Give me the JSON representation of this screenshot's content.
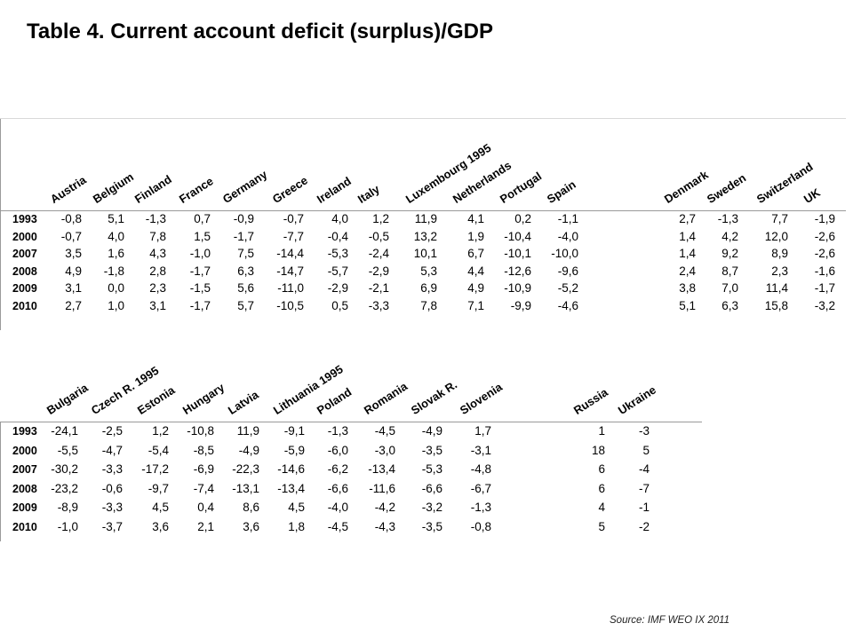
{
  "title": "Table 4. Current account deficit (surplus)/GDP",
  "source": "Source: IMF WEO IX 2011",
  "years": [
    "1993",
    "2000",
    "2007",
    "2008",
    "2009",
    "2010"
  ],
  "table1": {
    "groups": [
      {
        "columns": [
          "Austria",
          "Belgium",
          "Finland",
          "France",
          "Germany",
          "Greece",
          "Ireland",
          "Italy",
          "Luxembourg 1995",
          "Netherlands",
          "Portugal",
          "Spain"
        ],
        "rows": [
          [
            "-0,8",
            "5,1",
            "-1,3",
            "0,7",
            "-0,9",
            "-0,7",
            "4,0",
            "1,2",
            "11,9",
            "4,1",
            "0,2",
            "-1,1"
          ],
          [
            "-0,7",
            "4,0",
            "7,8",
            "1,5",
            "-1,7",
            "-7,7",
            "-0,4",
            "-0,5",
            "13,2",
            "1,9",
            "-10,4",
            "-4,0"
          ],
          [
            "3,5",
            "1,6",
            "4,3",
            "-1,0",
            "7,5",
            "-14,4",
            "-5,3",
            "-2,4",
            "10,1",
            "6,7",
            "-10,1",
            "-10,0"
          ],
          [
            "4,9",
            "-1,8",
            "2,8",
            "-1,7",
            "6,3",
            "-14,7",
            "-5,7",
            "-2,9",
            "5,3",
            "4,4",
            "-12,6",
            "-9,6"
          ],
          [
            "3,1",
            "0,0",
            "2,3",
            "-1,5",
            "5,6",
            "-11,0",
            "-2,9",
            "-2,1",
            "6,9",
            "4,9",
            "-10,9",
            "-5,2"
          ],
          [
            "2,7",
            "1,0",
            "3,1",
            "-1,7",
            "5,7",
            "-10,5",
            "0,5",
            "-3,3",
            "7,8",
            "7,1",
            "-9,9",
            "-4,6"
          ]
        ]
      },
      {
        "columns": [
          "Denmark",
          "Sweden",
          "Switzerland",
          "UK"
        ],
        "rows": [
          [
            "2,7",
            "-1,3",
            "7,7",
            "-1,9"
          ],
          [
            "1,4",
            "4,2",
            "12,0",
            "-2,6"
          ],
          [
            "1,4",
            "9,2",
            "8,9",
            "-2,6"
          ],
          [
            "2,4",
            "8,7",
            "2,3",
            "-1,6"
          ],
          [
            "3,8",
            "7,0",
            "11,4",
            "-1,7"
          ],
          [
            "5,1",
            "6,3",
            "15,8",
            "-3,2"
          ]
        ]
      }
    ]
  },
  "table2": {
    "groups": [
      {
        "columns": [
          "Bulgaria",
          "Czech R. 1995",
          "Estonia",
          "Hungary",
          "Latvia",
          "Lithuania 1995",
          "Poland",
          "Romania",
          "Slovak R.",
          "Slovenia"
        ],
        "rows": [
          [
            "-24,1",
            "-2,5",
            "1,2",
            "-10,8",
            "11,9",
            "-9,1",
            "-1,3",
            "-4,5",
            "-4,9",
            "1,7"
          ],
          [
            "-5,5",
            "-4,7",
            "-5,4",
            "-8,5",
            "-4,9",
            "-5,9",
            "-6,0",
            "-3,0",
            "-3,5",
            "-3,1"
          ],
          [
            "-30,2",
            "-3,3",
            "-17,2",
            "-6,9",
            "-22,3",
            "-14,6",
            "-6,2",
            "-13,4",
            "-5,3",
            "-4,8"
          ],
          [
            "-23,2",
            "-0,6",
            "-9,7",
            "-7,4",
            "-13,1",
            "-13,4",
            "-6,6",
            "-11,6",
            "-6,6",
            "-6,7"
          ],
          [
            "-8,9",
            "-3,3",
            "4,5",
            "0,4",
            "8,6",
            "4,5",
            "-4,0",
            "-4,2",
            "-3,2",
            "-1,3"
          ],
          [
            "-1,0",
            "-3,7",
            "3,6",
            "2,1",
            "3,6",
            "1,8",
            "-4,5",
            "-4,3",
            "-3,5",
            "-0,8"
          ]
        ]
      },
      {
        "columns": [
          "Russia",
          "Ukraine"
        ],
        "rows": [
          [
            "1",
            "-3"
          ],
          [
            "18",
            "5"
          ],
          [
            "6",
            "-4"
          ],
          [
            "6",
            "-7"
          ],
          [
            "4",
            "-1"
          ],
          [
            "5",
            "-2"
          ]
        ]
      }
    ]
  }
}
